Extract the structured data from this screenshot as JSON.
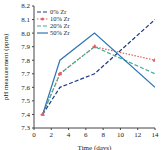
{
  "chart_data": {
    "type": "line",
    "x_label": "Time (days)",
    "y_label": "pH measurement (ppm)",
    "x": [
      1,
      3,
      7,
      14
    ],
    "xlim": [
      0,
      14
    ],
    "xticks": [
      0,
      2,
      4,
      6,
      8,
      10,
      12,
      14
    ],
    "ylim": [
      7.3,
      8.2
    ],
    "yticks": [
      7.3,
      7.4,
      7.5,
      7.6,
      7.7,
      7.8,
      7.9,
      {
        "value": 8,
        "label": "8.0"
      },
      8.1,
      8.2
    ],
    "legend": "upper left",
    "series": [
      {
        "name": "0% Zr",
        "color": "#1f3a8a",
        "line_style": "dashed",
        "values": [
          7.4,
          7.6,
          7.7,
          8.1
        ]
      },
      {
        "name": "10% Zr",
        "color": "#e06060",
        "line_style": "dotted",
        "marker": "circle",
        "values": [
          7.4,
          7.7,
          7.9,
          7.8
        ]
      },
      {
        "name": "20% Zr",
        "color": "#3fae9a",
        "line_style": "dashed",
        "values": [
          7.4,
          7.7,
          7.9,
          7.7
        ]
      },
      {
        "name": "50% Zr",
        "color": "#2e75b6",
        "line_style": "solid",
        "values": [
          7.4,
          7.8,
          8.0,
          7.6
        ]
      }
    ]
  }
}
